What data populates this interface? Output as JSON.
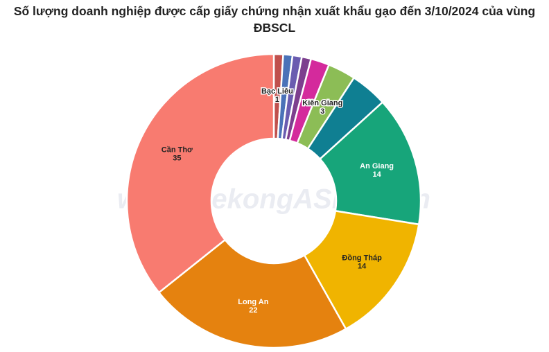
{
  "chart_data": {
    "type": "donut",
    "title": "Số lượng doanh nghiệp được cấp giấy chứng nhận xuất khẩu gạo đến 3/10/2024 của vùng ĐBSCL",
    "watermark": "www.MekongASEAN.vn",
    "categories": [
      "Bạc Liêu",
      null,
      null,
      null,
      null,
      "Kiên Giang",
      null,
      "An Giang",
      "Đồng Tháp",
      "Long An",
      "Cần Thơ"
    ],
    "values": [
      1,
      1,
      1,
      1,
      2,
      3,
      4,
      14,
      14,
      22,
      35
    ],
    "colors": [
      "#c0504d",
      "#4a72b8",
      "#6a5cb0",
      "#7d3f8e",
      "#d42a9c",
      "#8cbd56",
      "#0f7f92",
      "#17a57a",
      "#f0b400",
      "#e5820f",
      "#f87b70"
    ]
  }
}
